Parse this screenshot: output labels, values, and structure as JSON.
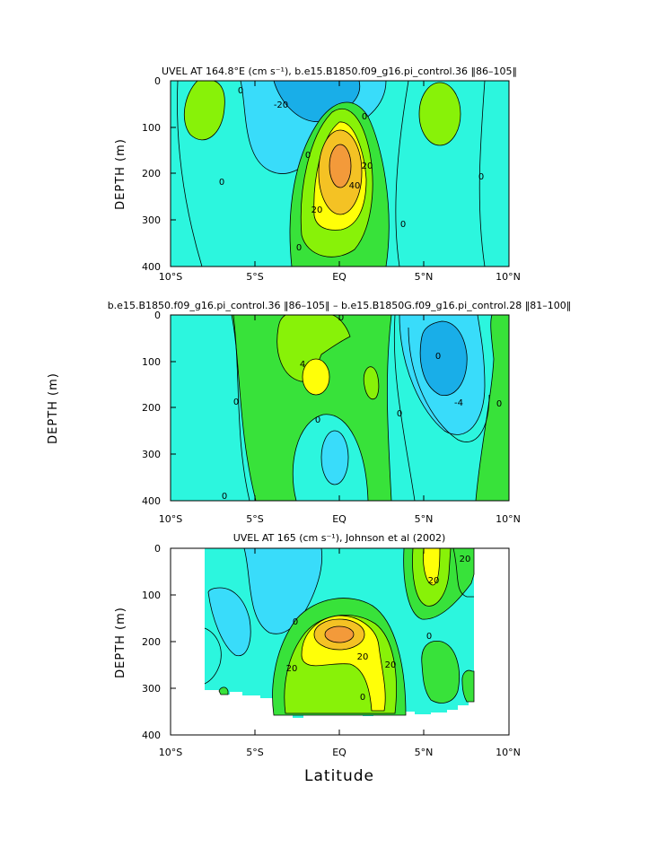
{
  "colors": {
    "deep_blue": "#19aee8",
    "light_blue": "#39dcfa",
    "cyan": "#2cf6de",
    "green": "#38e23a",
    "lime": "#88f208",
    "yellow": "#ffff08",
    "gold": "#f4c224",
    "orange": "#f39a3a",
    "contour": "#000000"
  },
  "shared": {
    "x_ticks": [
      "10°S",
      "5°S",
      "EQ",
      "5°N",
      "10°N"
    ],
    "y_ticks": [
      "0",
      "100",
      "200",
      "300",
      "400"
    ],
    "xlabel": "Latitude"
  },
  "chart_data": [
    {
      "type": "heatmap",
      "title": "UVEL AT 164.8°E (cm s⁻¹), b.e15.B1850.f09_g16.pi_control.36 ‖86–105‖",
      "ylabel": "DEPTH (m)",
      "xlim": [
        -10,
        10
      ],
      "ylim": [
        400,
        0
      ],
      "contour_labels": [
        "0",
        "-20",
        "0",
        "0",
        "0",
        "20",
        "40",
        "20",
        "0",
        "0",
        "0"
      ],
      "features": [
        {
          "name": "eastward core",
          "lat": 0,
          "depth": 185,
          "value": 50
        },
        {
          "name": "westward surface jet",
          "lat": -3,
          "depth": 30,
          "value": -25
        },
        {
          "name": "southern counter current",
          "lat": -9,
          "depth": 60,
          "value": 15
        },
        {
          "name": "northern counter current",
          "lat": 6,
          "depth": 80,
          "value": 15
        }
      ]
    },
    {
      "type": "heatmap",
      "title": "b.e15.B1850.f09_g16.pi_control.36 ‖86–105‖ – b.e15.B1850G.f09_g16.pi_control.28 ‖81–100‖",
      "ylabel": "DEPTH (m)",
      "xlim": [
        -10,
        10
      ],
      "ylim": [
        400,
        0
      ],
      "contour_labels": [
        "0",
        "4",
        "0",
        "0",
        "0",
        "0",
        "-4",
        "0",
        "0"
      ],
      "features": [
        {
          "name": "negative difference core",
          "lat": 6,
          "depth": 90,
          "value": -10
        },
        {
          "name": "positive difference",
          "lat": -1.5,
          "depth": 150,
          "value": 6
        },
        {
          "name": "negative difference",
          "lat": -0.5,
          "depth": 330,
          "value": -3
        }
      ]
    },
    {
      "type": "heatmap",
      "title": "UVEL AT 165 (cm s⁻¹), Johnson et al (2002)",
      "ylabel": "DEPTH (m)",
      "xlim": [
        -10,
        10
      ],
      "ylim": [
        400,
        0
      ],
      "data_extent": {
        "lat": [
          -8,
          8
        ]
      },
      "contour_labels": [
        "20",
        "20",
        "20",
        "20",
        "0",
        "0",
        "20",
        "0"
      ],
      "features": [
        {
          "name": "eastward core",
          "lat": 0,
          "depth": 190,
          "value": 50
        },
        {
          "name": "northern surface counter current",
          "lat": 5.5,
          "depth": 40,
          "value": 25
        }
      ]
    }
  ]
}
